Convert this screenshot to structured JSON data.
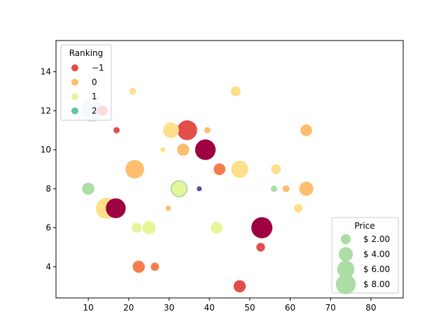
{
  "chart_data": {
    "type": "scatter",
    "title": "",
    "xlabel": "",
    "ylabel": "",
    "xlim": [
      2,
      88
    ],
    "ylim": [
      2.4,
      15.6
    ],
    "x_ticks": [
      10,
      20,
      30,
      40,
      50,
      60,
      70,
      80
    ],
    "y_ticks": [
      4,
      6,
      8,
      10,
      12,
      14
    ],
    "grid": false,
    "colors": {
      "-2": "#9e0142",
      "-1": "#e34d4a",
      "-0.5": "#f57d4d",
      "0": "#fdbf6f",
      "0.5": "#fee08b",
      "1": "#e6f598",
      "1.5": "#abdda4",
      "2": "#66c2a5",
      "2.5": "#5e4fa2"
    },
    "points": [
      {
        "x": 21.0,
        "y": 13.0,
        "ranking": 0.5,
        "price": 1.0
      },
      {
        "x": 46.5,
        "y": 13.0,
        "ranking": 0.5,
        "price": 2.0
      },
      {
        "x": 11.0,
        "y": 12.0,
        "ranking": 2.5,
        "price": 9.5,
        "hollow": true
      },
      {
        "x": 13.5,
        "y": 12.0,
        "ranking": -1,
        "price": 2.0
      },
      {
        "x": 17.0,
        "y": 11.0,
        "ranking": -1,
        "price": 0.8
      },
      {
        "x": 30.5,
        "y": 11.0,
        "ranking": 0.5,
        "price": 5.0
      },
      {
        "x": 34.5,
        "y": 11.0,
        "ranking": -1,
        "price": 8.0
      },
      {
        "x": 39.5,
        "y": 11.0,
        "ranking": 0,
        "price": 0.8
      },
      {
        "x": 64.0,
        "y": 11.0,
        "ranking": 0,
        "price": 2.8
      },
      {
        "x": 28.5,
        "y": 10.0,
        "ranking": 0.5,
        "price": 0.5
      },
      {
        "x": 33.5,
        "y": 10.0,
        "ranking": 0,
        "price": 3.0
      },
      {
        "x": 39.0,
        "y": 10.0,
        "ranking": -2,
        "price": 8.5
      },
      {
        "x": 21.5,
        "y": 9.0,
        "ranking": 0,
        "price": 7.0
      },
      {
        "x": 42.5,
        "y": 9.0,
        "ranking": -0.5,
        "price": 2.8
      },
      {
        "x": 47.5,
        "y": 9.0,
        "ranking": 0.5,
        "price": 6.0
      },
      {
        "x": 56.5,
        "y": 9.0,
        "ranking": 0.5,
        "price": 2.0
      },
      {
        "x": 10.0,
        "y": 8.0,
        "ranking": 1.5,
        "price": 3.0
      },
      {
        "x": 32.5,
        "y": 8.0,
        "ranking": 1,
        "price": 5.0,
        "edge": "#abdda4"
      },
      {
        "x": 37.5,
        "y": 8.0,
        "ranking": 2.5,
        "price": 0.5
      },
      {
        "x": 56.0,
        "y": 8.0,
        "ranking": 1.5,
        "price": 0.8
      },
      {
        "x": 59.0,
        "y": 8.0,
        "ranking": 0,
        "price": 1.0
      },
      {
        "x": 64.0,
        "y": 8.0,
        "ranking": 0,
        "price": 4.0
      },
      {
        "x": 14.5,
        "y": 7.0,
        "ranking": 0.5,
        "price": 9.0
      },
      {
        "x": 16.8,
        "y": 7.0,
        "ranking": -2,
        "price": 8.0
      },
      {
        "x": 29.8,
        "y": 7.0,
        "ranking": 0,
        "price": 0.6
      },
      {
        "x": 62.0,
        "y": 7.0,
        "ranking": 0.5,
        "price": 1.5
      },
      {
        "x": 22.0,
        "y": 6.0,
        "ranking": 1,
        "price": 2.0
      },
      {
        "x": 25.0,
        "y": 6.0,
        "ranking": 1,
        "price": 3.5
      },
      {
        "x": 41.8,
        "y": 6.0,
        "ranking": 1,
        "price": 2.8
      },
      {
        "x": 53.0,
        "y": 6.0,
        "ranking": -2,
        "price": 9.0
      },
      {
        "x": 52.7,
        "y": 5.0,
        "ranking": -1,
        "price": 1.5
      },
      {
        "x": 22.5,
        "y": 4.0,
        "ranking": -0.5,
        "price": 3.0
      },
      {
        "x": 26.5,
        "y": 4.0,
        "ranking": -0.5,
        "price": 1.4
      },
      {
        "x": 47.5,
        "y": 3.0,
        "ranking": -1,
        "price": 3.0
      }
    ],
    "legends": [
      {
        "title": "Ranking",
        "placement": "top-left",
        "entries": [
          {
            "label": "−1",
            "ranking": -1
          },
          {
            "label": "0",
            "ranking": 0
          },
          {
            "label": "1",
            "ranking": 1
          },
          {
            "label": "2",
            "ranking": 2
          }
        ]
      },
      {
        "title": "Price",
        "placement": "bottom-right",
        "entries": [
          {
            "label": "$ 2.00",
            "price": 2.0
          },
          {
            "label": "$ 4.00",
            "price": 4.0
          },
          {
            "label": "$ 6.00",
            "price": 6.0
          },
          {
            "label": "$ 8.00",
            "price": 8.0
          }
        ],
        "color": "#abdda4"
      }
    ]
  }
}
